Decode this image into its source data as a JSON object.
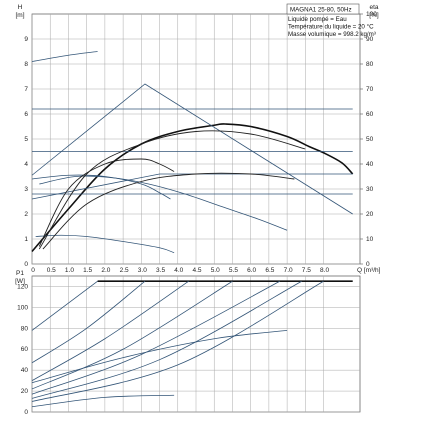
{
  "chart_data": [
    {
      "type": "line",
      "title": "MAGNA1 25-80, 50Hz",
      "annotations": [
        "Liquide pompé = Eau",
        "Température du liquide = 20 °C",
        "Masse volumique = 998.2 kg/m³"
      ],
      "ylabel_unit": "[m]",
      "ylabel": "H",
      "y2label": "eta",
      "y2label_unit": "[%]",
      "xlabel": "Q [m³/h]",
      "xlim": [
        0,
        9.0
      ],
      "ylim": [
        0,
        10
      ],
      "y2lim": [
        0,
        100
      ],
      "x_ticks": [
        "0",
        "0.5",
        "1.0",
        "1.5",
        "2.0",
        "2.5",
        "3.0",
        "3.5",
        "4.0",
        "4.5",
        "5.0",
        "5.5",
        "6.0",
        "6.5",
        "7.0",
        "7.5",
        "8.0"
      ],
      "y_ticks": [
        "0",
        "1",
        "2",
        "3",
        "4",
        "5",
        "6",
        "7",
        "8",
        "9"
      ],
      "y2_ticks": [
        "0",
        "10",
        "20",
        "30",
        "40",
        "50",
        "60",
        "70",
        "80",
        "90",
        "100"
      ],
      "grid": true,
      "series": [
        {
          "role": "head-max",
          "x": [
            0,
            1.0,
            2.0,
            3.0,
            4.0,
            5.0,
            5.3,
            6.0,
            7.0,
            7.6,
            8.0,
            8.5,
            8.8
          ],
          "y": [
            0.5,
            2.2,
            3.8,
            4.8,
            5.3,
            5.55,
            5.6,
            5.5,
            5.1,
            4.7,
            4.45,
            4.05,
            3.6
          ],
          "bold": true
        },
        {
          "role": "prop-pressure",
          "x": [
            0,
            3.1,
            8.8
          ],
          "y": [
            3.55,
            7.2,
            2.0
          ]
        },
        {
          "role": "prop-pressure",
          "x": [
            0,
            3.5,
            8.8
          ],
          "y": [
            2.6,
            3.6,
            3.6
          ]
        },
        {
          "role": "const-pressure",
          "x": [
            0,
            8.8
          ],
          "y": [
            6.2,
            6.2
          ]
        },
        {
          "role": "const-pressure",
          "x": [
            0,
            8.8
          ],
          "y": [
            4.5,
            4.5
          ]
        },
        {
          "role": "const-pressure",
          "x": [
            0,
            8.8
          ],
          "y": [
            2.8,
            2.8
          ]
        },
        {
          "role": "speed-curve",
          "x": [
            0,
            1.0,
            1.8
          ],
          "y": [
            8.1,
            8.35,
            8.5
          ]
        },
        {
          "role": "speed-curve",
          "x": [
            0,
            1.0,
            2.0,
            3.0,
            3.5,
            3.8
          ],
          "y": [
            3.4,
            3.55,
            3.5,
            3.2,
            2.85,
            2.6
          ]
        },
        {
          "role": "speed-curve",
          "x": [
            0.2,
            1.2,
            2.2,
            3.2,
            4.2,
            5.2,
            6.2,
            7.0
          ],
          "y": [
            3.2,
            3.5,
            3.45,
            3.2,
            2.8,
            2.3,
            1.8,
            1.35
          ]
        },
        {
          "role": "speed-curve",
          "x": [
            0.1,
            0.8,
            1.5,
            2.5,
            3.5,
            3.9
          ],
          "y": [
            1.1,
            1.15,
            1.1,
            0.9,
            0.65,
            0.45
          ]
        },
        {
          "role": "eta",
          "x": [
            0.3,
            1.5,
            3.0,
            4.5,
            6.0,
            7.2
          ],
          "y": [
            0.6,
            2.4,
            3.3,
            3.6,
            3.6,
            3.4
          ]
        },
        {
          "role": "eta",
          "x": [
            0.2,
            1.0,
            2.0,
            3.0,
            3.5,
            3.9
          ],
          "y": [
            0.7,
            3.0,
            4.0,
            4.2,
            4.0,
            3.7
          ]
        },
        {
          "role": "eta",
          "x": [
            0.2,
            1.5,
            3.0,
            4.5,
            6.0,
            7.5
          ],
          "y": [
            0.6,
            3.6,
            4.8,
            5.3,
            5.2,
            4.6
          ]
        }
      ]
    },
    {
      "type": "line",
      "ylabel": "P1",
      "ylabel_unit": "[W]",
      "xlim": [
        0,
        9.0
      ],
      "ylim": [
        0,
        130
      ],
      "y_ticks": [
        "0",
        "20",
        "40",
        "60",
        "80",
        "100",
        "120"
      ],
      "grid": true,
      "series": [
        {
          "role": "power-max",
          "x": [
            1.8,
            8.8
          ],
          "y": [
            125,
            125
          ],
          "bold": true
        },
        {
          "role": "power",
          "x": [
            0,
            1.8
          ],
          "y": [
            78,
            125
          ]
        },
        {
          "role": "power",
          "x": [
            0,
            1.5,
            3.1
          ],
          "y": [
            47,
            80,
            125
          ]
        },
        {
          "role": "power",
          "x": [
            0,
            2.0,
            4.3
          ],
          "y": [
            30,
            70,
            125
          ]
        },
        {
          "role": "power",
          "x": [
            0,
            2.5,
            5.5
          ],
          "y": [
            22,
            60,
            125
          ]
        },
        {
          "role": "power",
          "x": [
            0,
            3.0,
            6.8
          ],
          "y": [
            17,
            55,
            125
          ]
        },
        {
          "role": "power",
          "x": [
            0,
            3.5,
            7.4
          ],
          "y": [
            13,
            50,
            125
          ]
        },
        {
          "role": "power",
          "x": [
            0,
            4.0,
            8.0
          ],
          "y": [
            10,
            45,
            125
          ]
        },
        {
          "role": "power",
          "x": [
            0,
            2.5,
            5.0,
            7.0
          ],
          "y": [
            28,
            52,
            70,
            78
          ]
        },
        {
          "role": "power",
          "x": [
            0,
            2.0,
            3.9
          ],
          "y": [
            5,
            14,
            16
          ]
        }
      ]
    }
  ]
}
